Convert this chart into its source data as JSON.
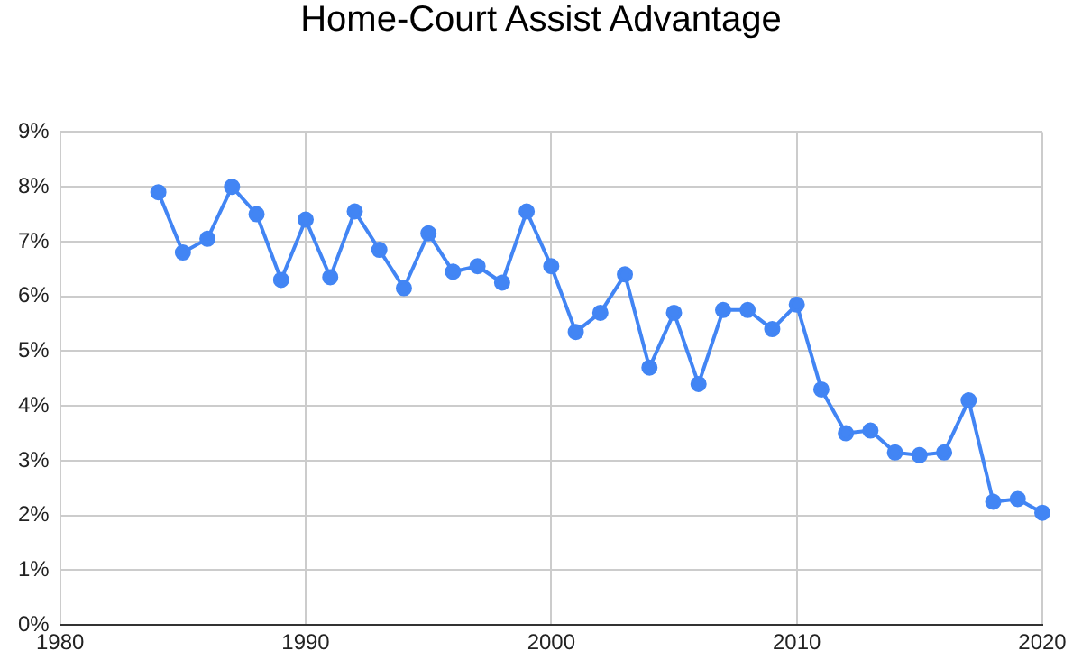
{
  "chart_data": {
    "type": "line",
    "title": "Home-Court Assist Advantage",
    "x": [
      1984,
      1985,
      1986,
      1987,
      1988,
      1989,
      1990,
      1991,
      1992,
      1993,
      1994,
      1995,
      1996,
      1997,
      1998,
      1999,
      2000,
      2001,
      2002,
      2003,
      2004,
      2005,
      2006,
      2007,
      2008,
      2009,
      2010,
      2011,
      2012,
      2013,
      2014,
      2015,
      2016,
      2017,
      2018,
      2019,
      2020
    ],
    "series": [
      {
        "color": "#4285f4",
        "values": [
          7.9,
          6.8,
          7.05,
          8.0,
          7.5,
          6.3,
          7.4,
          6.35,
          7.55,
          6.85,
          6.15,
          7.15,
          6.45,
          6.55,
          6.25,
          7.55,
          6.55,
          5.35,
          5.7,
          6.4,
          4.7,
          5.7,
          4.4,
          5.75,
          5.75,
          5.4,
          5.85,
          4.3,
          3.5,
          3.55,
          3.15,
          3.1,
          3.15,
          4.1,
          2.25,
          2.3,
          2.05
        ]
      }
    ],
    "xlim": [
      1980,
      2020
    ],
    "xticks": [
      1980,
      1990,
      2000,
      2010,
      2020
    ],
    "ylim": [
      0,
      9
    ],
    "yticks": [
      {
        "value": 0,
        "label": "0%"
      },
      {
        "value": 1,
        "label": "1%"
      },
      {
        "value": 2,
        "label": "2%"
      },
      {
        "value": 3,
        "label": "3%"
      },
      {
        "value": 4,
        "label": "4%"
      },
      {
        "value": 5,
        "label": "5%"
      },
      {
        "value": 6,
        "label": "6%"
      },
      {
        "value": 7,
        "label": "7%"
      },
      {
        "value": 8,
        "label": "8%"
      },
      {
        "value": 9,
        "label": "9%"
      }
    ],
    "grid": true,
    "legend": false,
    "marker": "circle",
    "line_style": "solid"
  }
}
